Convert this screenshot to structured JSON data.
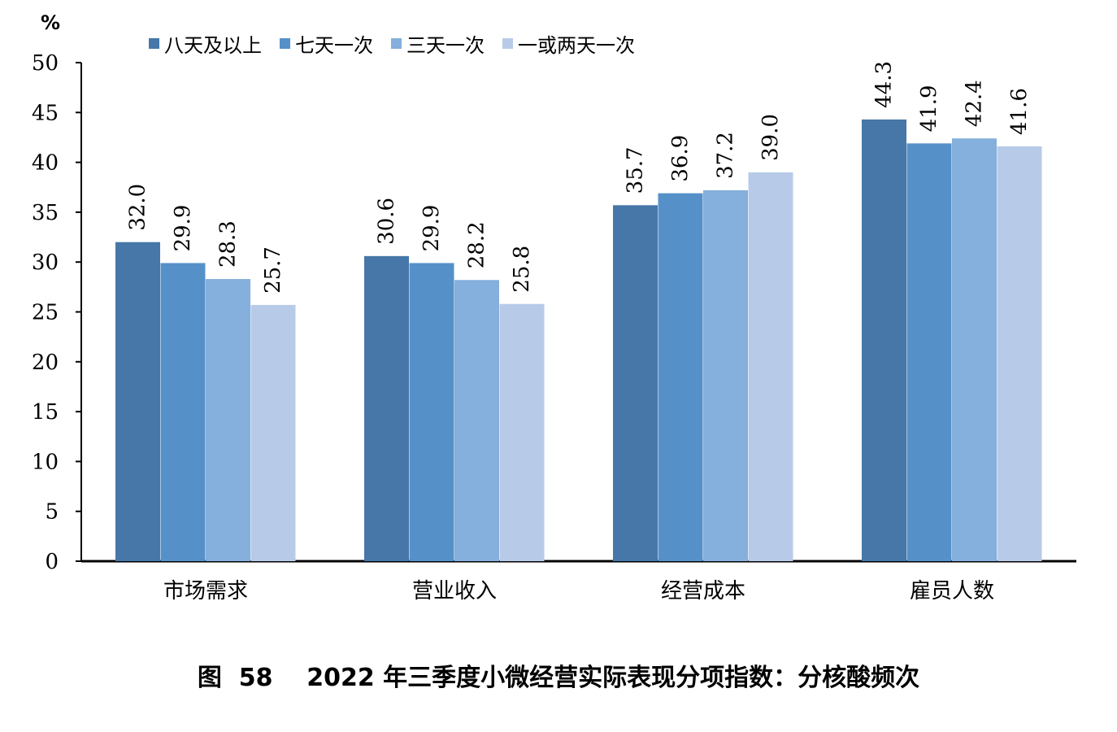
{
  "chart_data": {
    "type": "bar",
    "unit": "%",
    "categories": [
      "市场需求",
      "营业收入",
      "经营成本",
      "雇员人数"
    ],
    "series": [
      {
        "name": "八天及以上",
        "color": "#4677a8",
        "values": [
          32.0,
          30.6,
          35.7,
          44.3
        ]
      },
      {
        "name": "七天一次",
        "color": "#5591c8",
        "values": [
          29.9,
          29.9,
          36.9,
          41.9
        ]
      },
      {
        "name": "三天一次",
        "color": "#85afdc",
        "values": [
          28.3,
          28.2,
          37.2,
          42.4
        ]
      },
      {
        "name": "一或两天一次",
        "color": "#b7cbe8",
        "values": [
          25.7,
          25.8,
          39.0,
          41.6
        ]
      }
    ],
    "y_ticks": [
      "0",
      "5",
      "10",
      "15",
      "20",
      "25",
      "30",
      "35",
      "40",
      "45",
      "50"
    ],
    "ylim": [
      0,
      50
    ],
    "grid": false,
    "legend_position": "top",
    "caption": "图  58    2022 年三季度小微经营实际表现分项指数：分核酸频次"
  }
}
